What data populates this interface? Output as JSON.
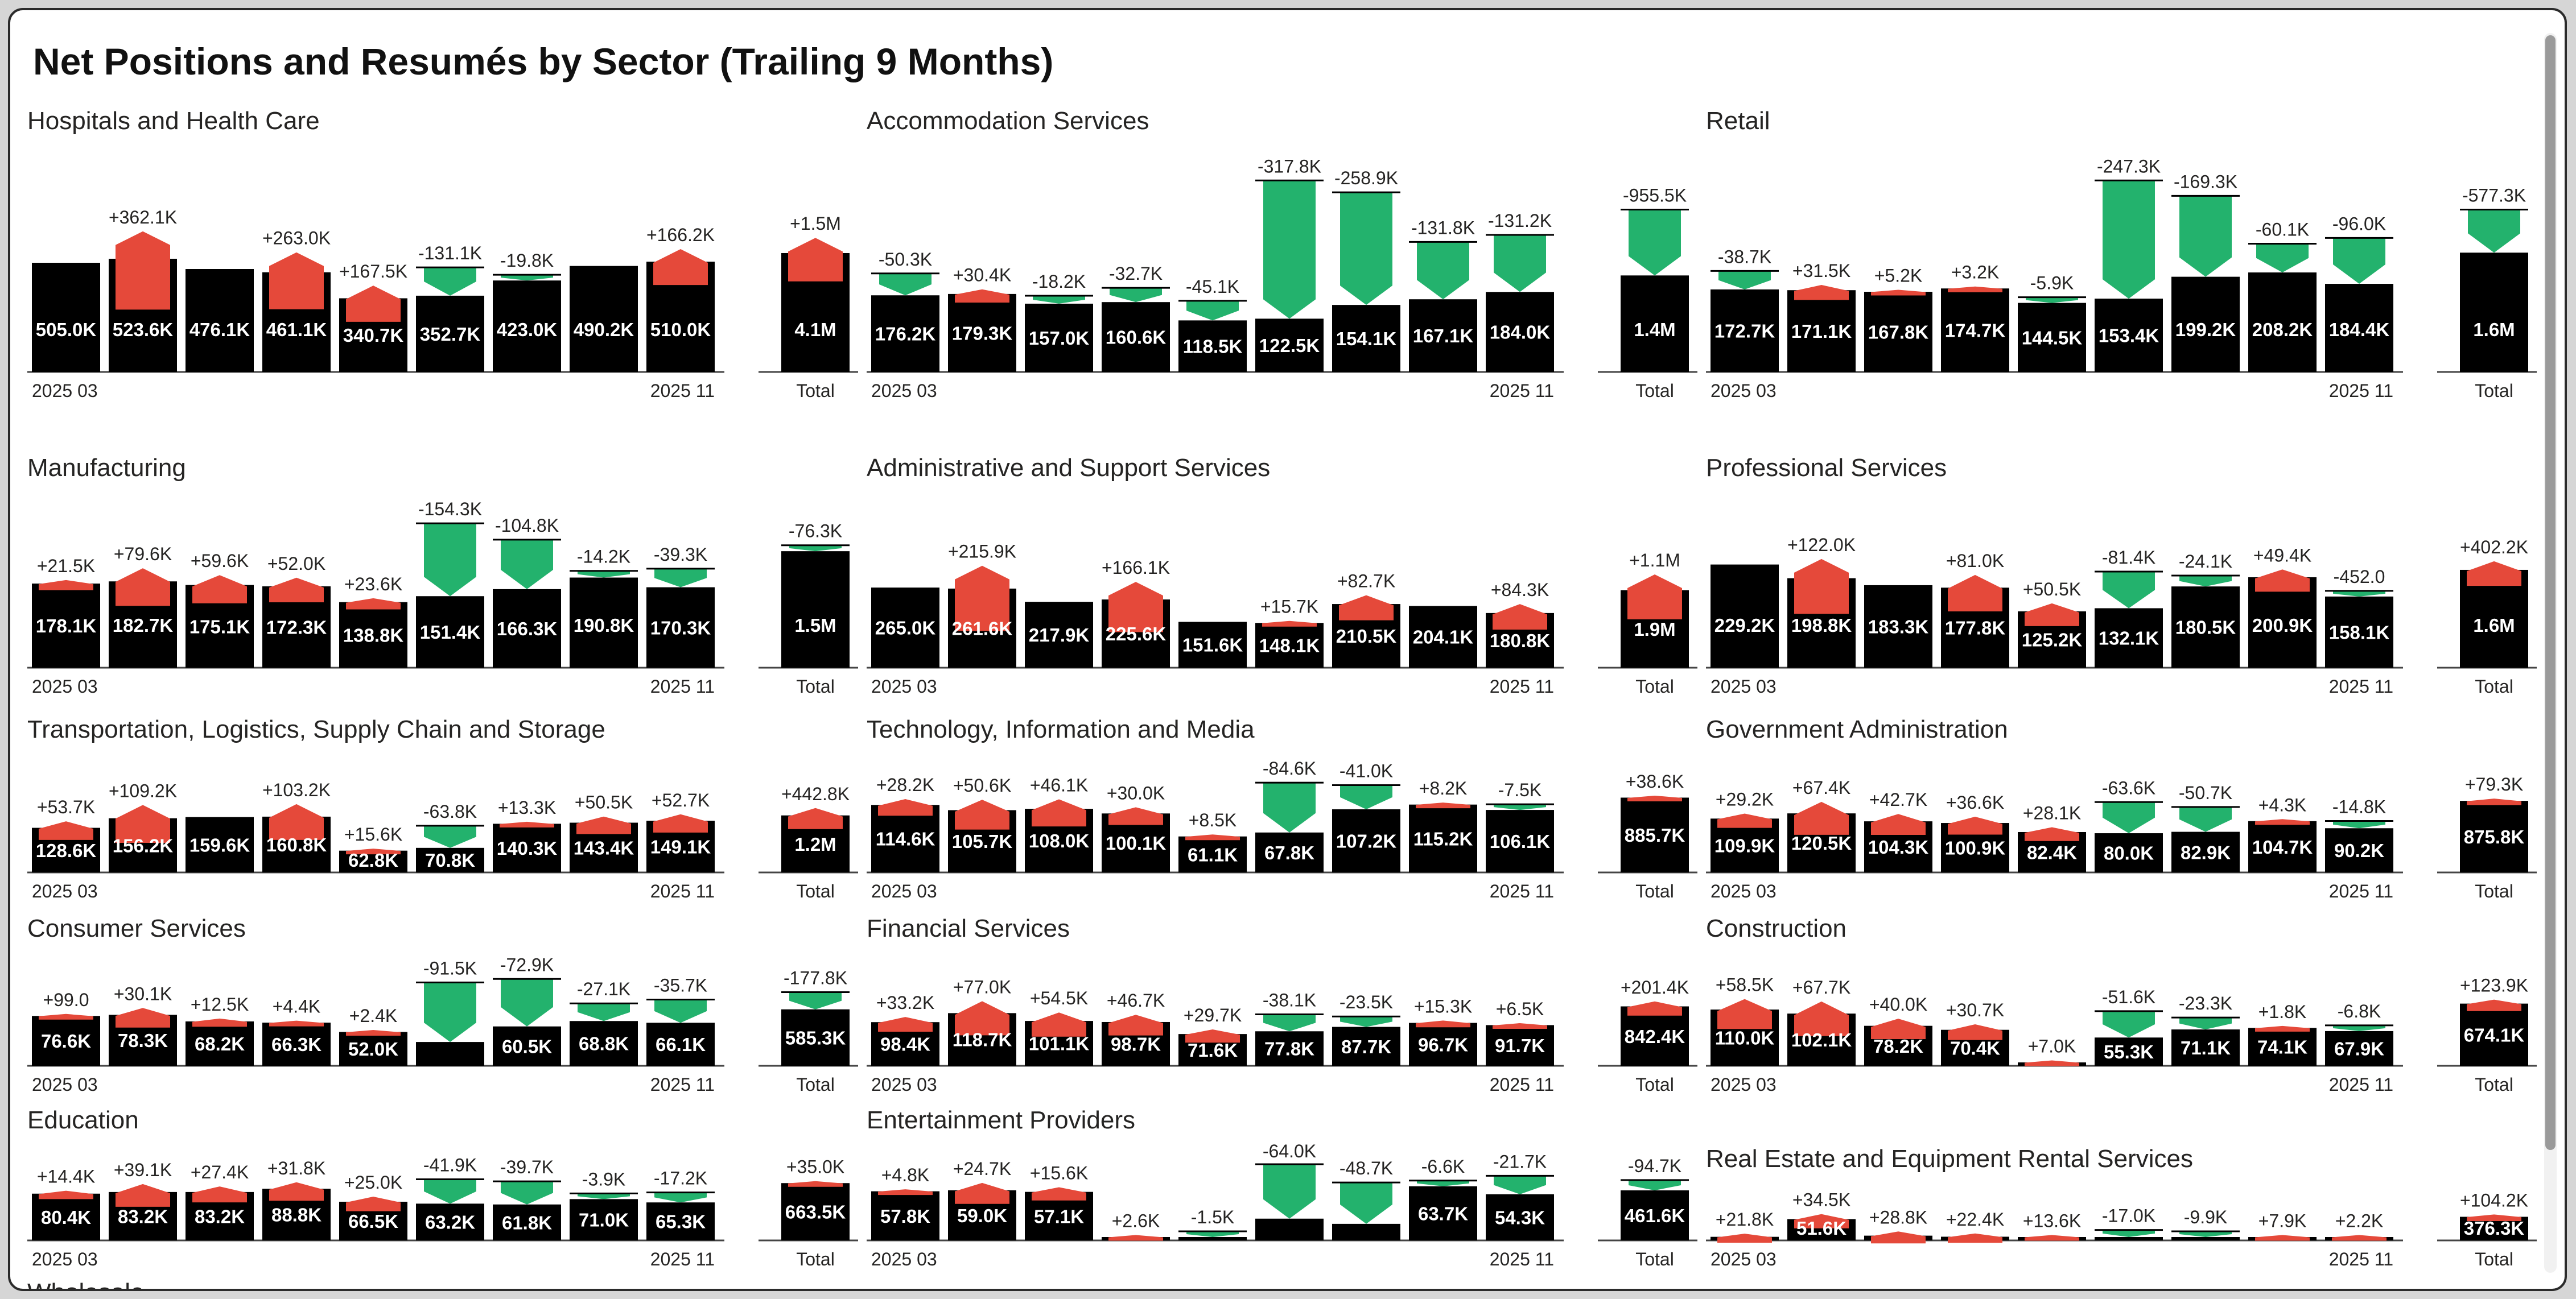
{
  "report": {
    "title": "Net Positions and Resumés by Sector (Trailing 9 Months)",
    "partial_next_panel": "Wholesale"
  },
  "colors": {
    "base": "#000000",
    "increase": "#e5493a",
    "decrease": "#23b26d",
    "axis": "#444444",
    "text": "#252423"
  },
  "axis_labels": {
    "start": "2025 03",
    "end": "2025 11",
    "total": "Total"
  },
  "scrollbar": {
    "icon": "vertical-scrollbar"
  },
  "chart_data": [
    {
      "type": "bar",
      "title": "Hospitals and Health Care",
      "base_labels": [
        "505.0K",
        "523.6K",
        "476.1K",
        "461.1K",
        "340.7K",
        "352.7K",
        "423.0K",
        "490.2K",
        "510.0K",
        "4.1M"
      ],
      "deltas": [
        "",
        "+362.1K",
        "",
        "+263.0K",
        "+167.5K",
        "-131.1K",
        "-19.8K",
        "",
        "+166.2K",
        "+1.5M"
      ]
    },
    {
      "type": "bar",
      "title": "Accommodation Services",
      "base_labels": [
        "176.2K",
        "179.3K",
        "157.0K",
        "160.6K",
        "118.5K",
        "122.5K",
        "154.1K",
        "167.1K",
        "184.0K",
        "1.4M"
      ],
      "deltas": [
        "-50.3K",
        "+30.4K",
        "-18.2K",
        "-32.7K",
        "-45.1K",
        "-317.8K",
        "-258.9K",
        "-131.8K",
        "-131.2K",
        "-955.5K"
      ]
    },
    {
      "type": "bar",
      "title": "Retail",
      "base_labels": [
        "172.7K",
        "171.1K",
        "167.8K",
        "174.7K",
        "144.5K",
        "153.4K",
        "199.2K",
        "208.2K",
        "184.4K",
        "1.6M"
      ],
      "deltas": [
        "-38.7K",
        "+31.5K",
        "+5.2K",
        "+3.2K",
        "-5.9K",
        "-247.3K",
        "-169.3K",
        "-60.1K",
        "-96.0K",
        "-577.3K"
      ]
    },
    {
      "type": "bar",
      "title": "Manufacturing",
      "base_labels": [
        "178.1K",
        "182.7K",
        "175.1K",
        "172.3K",
        "138.8K",
        "151.4K",
        "166.3K",
        "190.8K",
        "170.3K",
        "1.5M"
      ],
      "deltas": [
        "+21.5K",
        "+79.6K",
        "+59.6K",
        "+52.0K",
        "+23.6K",
        "-154.3K",
        "-104.8K",
        "-14.2K",
        "-39.3K",
        "-76.3K"
      ]
    },
    {
      "type": "bar",
      "title": "Administrative and Support Services",
      "base_labels": [
        "265.0K",
        "261.6K",
        "217.9K",
        "225.6K",
        "151.6K",
        "148.1K",
        "210.5K",
        "204.1K",
        "180.8K",
        "1.9M"
      ],
      "deltas": [
        "",
        "+215.9K",
        "",
        "+166.1K",
        "",
        "+15.7K",
        "+82.7K",
        "",
        "+84.3K",
        "+1.1M"
      ]
    },
    {
      "type": "bar",
      "title": "Professional Services",
      "base_labels": [
        "229.2K",
        "198.8K",
        "183.3K",
        "177.8K",
        "125.2K",
        "132.1K",
        "180.5K",
        "200.9K",
        "158.1K",
        "1.6M"
      ],
      "deltas": [
        "",
        "+122.0K",
        "",
        "+81.0K",
        "+50.5K",
        "-81.4K",
        "-24.1K",
        "+49.4K",
        "-452.0",
        "+402.2K"
      ]
    },
    {
      "type": "bar",
      "title": "Transportation, Logistics, Supply Chain and Storage",
      "base_labels": [
        "128.6K",
        "156.2K",
        "159.6K",
        "160.8K",
        "62.8K",
        "70.8K",
        "140.3K",
        "143.4K",
        "149.1K",
        "1.2M"
      ],
      "deltas": [
        "+53.7K",
        "+109.2K",
        "",
        "+103.2K",
        "+15.6K",
        "-63.8K",
        "+13.3K",
        "+50.5K",
        "+52.7K",
        "+442.8K"
      ]
    },
    {
      "type": "bar",
      "title": "Technology, Information and Media",
      "base_labels": [
        "114.6K",
        "105.7K",
        "108.0K",
        "100.1K",
        "61.1K",
        "67.8K",
        "107.2K",
        "115.2K",
        "106.1K",
        "885.7K"
      ],
      "deltas": [
        "+28.2K",
        "+50.6K",
        "+46.1K",
        "+30.0K",
        "+8.5K",
        "-84.6K",
        "-41.0K",
        "+8.2K",
        "-7.5K",
        "+38.6K"
      ]
    },
    {
      "type": "bar",
      "title": "Government Administration",
      "base_labels": [
        "109.9K",
        "120.5K",
        "104.3K",
        "100.9K",
        "82.4K",
        "80.0K",
        "82.9K",
        "104.7K",
        "90.2K",
        "875.8K"
      ],
      "deltas": [
        "+29.2K",
        "+67.4K",
        "+42.7K",
        "+36.6K",
        "+28.1K",
        "-63.6K",
        "-50.7K",
        "+4.3K",
        "-14.8K",
        "+79.3K"
      ]
    },
    {
      "type": "bar",
      "title": "Consumer Services",
      "base_labels": [
        "76.6K",
        "78.3K",
        "68.2K",
        "66.3K",
        "52.0K",
        "",
        "60.5K",
        "68.8K",
        "66.1K",
        "585.3K"
      ],
      "deltas": [
        "+99.0",
        "+30.1K",
        "+12.5K",
        "+4.4K",
        "+2.4K",
        "-91.5K",
        "-72.9K",
        "-27.1K",
        "-35.7K",
        "-177.8K"
      ]
    },
    {
      "type": "bar",
      "title": "Financial Services",
      "base_labels": [
        "98.4K",
        "118.7K",
        "101.1K",
        "98.7K",
        "71.6K",
        "77.8K",
        "87.7K",
        "96.7K",
        "91.7K",
        "842.4K"
      ],
      "deltas": [
        "+33.2K",
        "+77.0K",
        "+54.5K",
        "+46.7K",
        "+29.7K",
        "-38.1K",
        "-23.5K",
        "+15.3K",
        "+6.5K",
        "+201.4K"
      ]
    },
    {
      "type": "bar",
      "title": "Construction",
      "base_labels": [
        "110.0K",
        "102.1K",
        "78.2K",
        "70.4K",
        "",
        "55.3K",
        "71.1K",
        "74.1K",
        "67.9K",
        "674.1K"
      ],
      "deltas": [
        "+58.5K",
        "+67.7K",
        "+40.0K",
        "+30.7K",
        "+7.0K",
        "-51.6K",
        "-23.3K",
        "+1.8K",
        "-6.8K",
        "+123.9K"
      ]
    },
    {
      "type": "bar",
      "title": "Education",
      "base_labels": [
        "80.4K",
        "83.2K",
        "83.2K",
        "88.8K",
        "66.5K",
        "63.2K",
        "61.8K",
        "71.0K",
        "65.3K",
        "663.5K"
      ],
      "deltas": [
        "+14.4K",
        "+39.1K",
        "+27.4K",
        "+31.8K",
        "+25.0K",
        "-41.9K",
        "-39.7K",
        "-3.9K",
        "-17.2K",
        "+35.0K"
      ]
    },
    {
      "type": "bar",
      "title": "Entertainment Providers",
      "base_labels": [
        "57.8K",
        "59.0K",
        "57.1K",
        "",
        "",
        "",
        "",
        "63.7K",
        "54.3K",
        "461.6K"
      ],
      "deltas": [
        "+4.8K",
        "+24.7K",
        "+15.6K",
        "+2.6K",
        "-1.5K",
        "-64.0K",
        "-48.7K",
        "-6.6K",
        "-21.7K",
        "-94.7K"
      ]
    },
    {
      "type": "bar",
      "title": "Real Estate and Equipment Rental Services",
      "base_labels": [
        "",
        "51.6K",
        "",
        "",
        "",
        "",
        "",
        "",
        "",
        "376.3K"
      ],
      "deltas": [
        "+21.8K",
        "+34.5K",
        "+28.8K",
        "+22.4K",
        "+13.6K",
        "-17.0K",
        "-9.9K",
        "+7.9K",
        "+2.2K",
        "+104.2K"
      ]
    }
  ]
}
